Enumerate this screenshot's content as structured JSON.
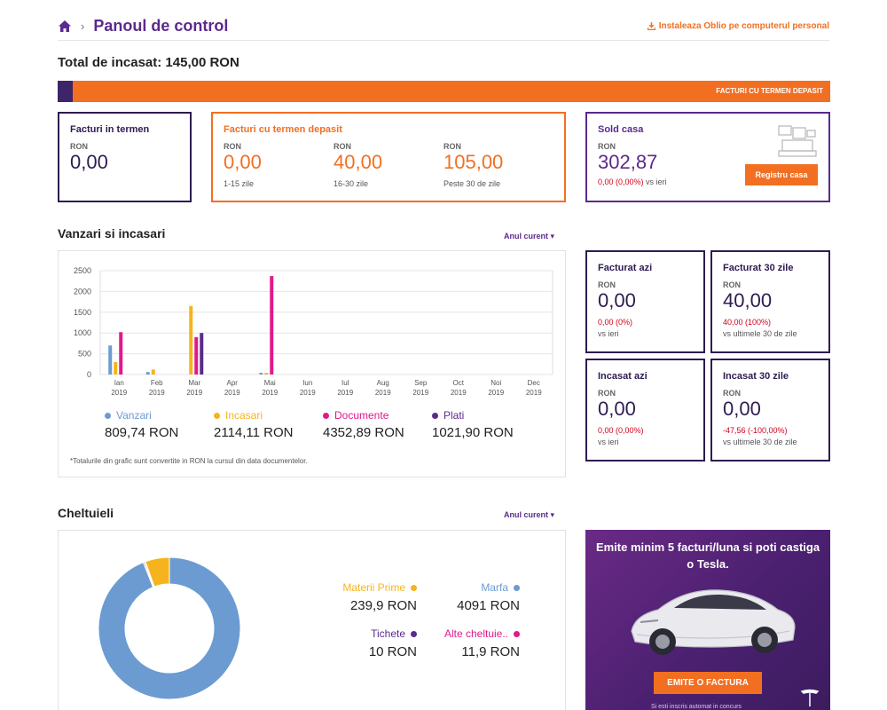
{
  "header": {
    "title": "Panoul de control",
    "install_link": "Instaleaza Oblio pe computerul personal"
  },
  "total": {
    "label": "Total de incasat: 145,00 RON"
  },
  "progress": {
    "label": "FACTURI CU TERMEN DEPASIT",
    "in_term_fraction": 0.02
  },
  "cards": {
    "termen": {
      "title": "Facturi in termen",
      "currency": "RON",
      "value": "0,00"
    },
    "depasit": {
      "title": "Facturi cu termen depasit",
      "cols": [
        {
          "currency": "RON",
          "value": "0,00",
          "range": "1-15 zile"
        },
        {
          "currency": "RON",
          "value": "40,00",
          "range": "16-30 zile"
        },
        {
          "currency": "RON",
          "value": "105,00",
          "range": "Peste 30 de zile"
        }
      ]
    },
    "sold": {
      "title": "Sold casa",
      "currency": "RON",
      "value": "302,87",
      "delta": "0,00 (0,00%)",
      "delta_suffix": "vs ieri",
      "button": "Registru casa"
    }
  },
  "sales": {
    "title": "Vanzari si incasari",
    "period": "Anul curent",
    "footnote": "*Totalurile din grafic sunt convertite in RON la cursul din data documentelor.",
    "legend": [
      {
        "name": "Vanzari",
        "value": "809,74 RON",
        "color": "#6b9bd1"
      },
      {
        "name": "Incasari",
        "value": "2114,11 RON",
        "color": "#f5b41d"
      },
      {
        "name": "Documente",
        "value": "4352,89 RON",
        "color": "#e0198b"
      },
      {
        "name": "Plati",
        "value": "1021,90 RON",
        "color": "#5b2a8c"
      }
    ]
  },
  "chart_data": {
    "type": "bar",
    "categories": [
      "Ian 2019",
      "Feb 2019",
      "Mar 2019",
      "Apr 2019",
      "Mai 2019",
      "Iun 2019",
      "Iul 2019",
      "Aug 2019",
      "Sep 2019",
      "Oct 2019",
      "Noi 2019",
      "Dec 2019"
    ],
    "yticks": [
      0,
      500,
      1000,
      1500,
      2000,
      2500
    ],
    "ylim": [
      0,
      2500
    ],
    "grid": true,
    "series": [
      {
        "name": "Vanzari",
        "color": "#6b9bd1",
        "values": [
          700,
          60,
          0,
          0,
          40,
          0,
          0,
          0,
          0,
          0,
          0,
          0
        ]
      },
      {
        "name": "Incasari",
        "color": "#f5b41d",
        "values": [
          300,
          120,
          1650,
          0,
          40,
          0,
          0,
          0,
          0,
          0,
          0,
          0
        ]
      },
      {
        "name": "Documente",
        "color": "#e0198b",
        "values": [
          1020,
          0,
          900,
          0,
          2370,
          0,
          0,
          0,
          0,
          0,
          0,
          0
        ]
      },
      {
        "name": "Plati",
        "color": "#5b2a8c",
        "values": [
          0,
          0,
          1000,
          0,
          0,
          0,
          0,
          0,
          0,
          0,
          0,
          0
        ]
      }
    ]
  },
  "minis": {
    "facturat_azi": {
      "title": "Facturat azi",
      "currency": "RON",
      "value": "0,00",
      "delta": "0,00 (0%)",
      "compare": "vs ieri"
    },
    "facturat_30": {
      "title": "Facturat 30 zile",
      "currency": "RON",
      "value": "40,00",
      "delta": "40,00 (100%)",
      "compare": "vs ultimele 30 de zile"
    },
    "incasat_azi": {
      "title": "Incasat azi",
      "currency": "RON",
      "value": "0,00",
      "delta": "0,00 (0,00%)",
      "compare": "vs ieri"
    },
    "incasat_30": {
      "title": "Incasat 30 zile",
      "currency": "RON",
      "value": "0,00",
      "delta": "-47,56 (-100,00%)",
      "compare": "vs ultimele 30 de zile"
    }
  },
  "expenses": {
    "title": "Cheltuieli",
    "period": "Anul curent",
    "items": [
      {
        "name": "Materii Prime",
        "value": "239,9 RON",
        "amount": 239.9,
        "color": "#f5b41d"
      },
      {
        "name": "Marfa",
        "value": "4091 RON",
        "amount": 4091,
        "color": "#6b9bd1"
      },
      {
        "name": "Tichete",
        "value": "10 RON",
        "amount": 10,
        "color": "#5b2a8c"
      },
      {
        "name": "Alte cheltuie..",
        "value": "11,9 RON",
        "amount": 11.9,
        "color": "#e0198b"
      }
    ]
  },
  "promo": {
    "text": "Emite minim 5 facturi/luna si poti castiga o Tesla.",
    "button": "EMITE O FACTURA",
    "small": "Si esti inscris automat in concurs"
  },
  "colors": {
    "purple": "#5b2a8c",
    "dark": "#2d1c52",
    "orange": "#f26f21",
    "red": "#d0021b"
  }
}
